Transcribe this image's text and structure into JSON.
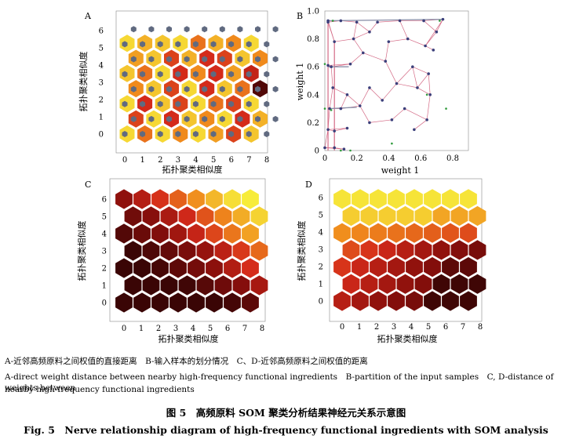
{
  "panels": {
    "A": {
      "letter": "A",
      "xlabel": "拓扑聚类相似度",
      "ylabel": "拓扑聚类相似度",
      "xticks": [
        "0",
        "1",
        "2",
        "3",
        "4",
        "5",
        "6",
        "7",
        "8"
      ],
      "yticks": [
        "0",
        "1",
        "2",
        "3",
        "4",
        "5",
        "6"
      ],
      "colors": {
        "low": "#f5e43a",
        "mid": "#f08a1c",
        "high": "#d42a1a",
        "max": "#3a0606",
        "node": "#606a80"
      }
    },
    "B": {
      "letter": "B",
      "xlabel": "weight 1",
      "ylabel": "weight 1",
      "xticks": [
        "0",
        "0.2",
        "0.4",
        "0.6",
        "0.8"
      ],
      "yticks": [
        "0",
        "0.2",
        "0.4",
        "0.6",
        "0.8",
        "1.0"
      ],
      "colors": {
        "edge": "#d46b86",
        "node": "#3b3f7a",
        "sample": "#2e9a3a"
      }
    },
    "C": {
      "letter": "C",
      "xlabel": "拓扑聚类相似度",
      "ylabel": "拓扑聚类相似度",
      "xticks": [
        "0",
        "1",
        "2",
        "3",
        "4",
        "5",
        "6",
        "7",
        "8"
      ],
      "yticks": [
        "0",
        "1",
        "2",
        "3",
        "4",
        "5",
        "6"
      ]
    },
    "D": {
      "letter": "D",
      "xlabel": "拓扑聚类相似度",
      "ylabel": "拓扑聚类相似度",
      "xticks": [
        "0",
        "1",
        "2",
        "3",
        "4",
        "5",
        "6",
        "7",
        "8"
      ],
      "yticks": [
        "0",
        "1",
        "2",
        "3",
        "4",
        "5",
        "6"
      ]
    }
  },
  "notes": {
    "line1": "A-近邻高频原料之间权值的直接距离　B-输入样本的划分情况　C、D-近邻高频原料之间权值的距离",
    "line2": "A-direct weight distance between nearby high-frequency functional ingredients　B-partition of the input samples　C, D-distance of weights between",
    "line3": "nearby high-frequency functional ingredients"
  },
  "caption": {
    "zh": "图 5　高频原料 SOM 聚类分析结果神经元关系示意图",
    "en": "Fig. 5　Nerve relationship diagram of high-frequency functional ingredients with SOM analysis"
  }
}
